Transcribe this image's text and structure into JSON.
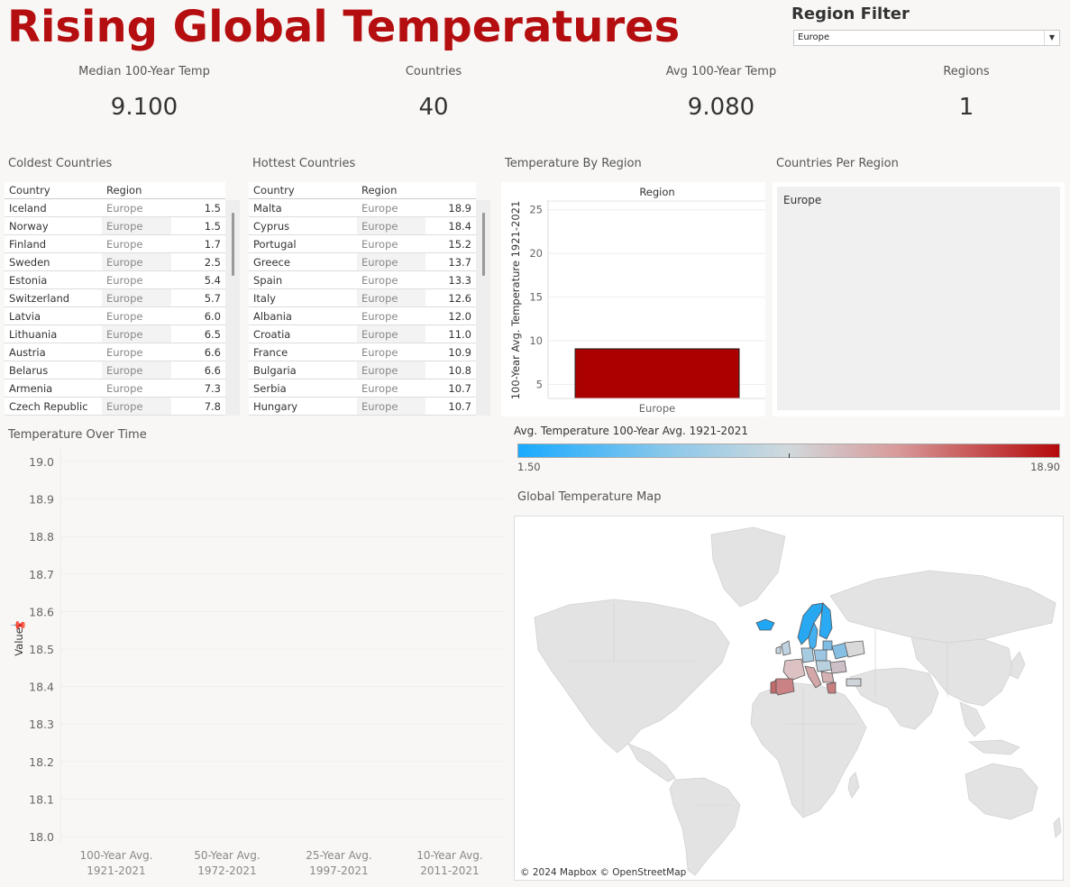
{
  "header": {
    "title": "Rising Global Temperatures"
  },
  "filter": {
    "label": "Region Filter",
    "selected": "Europe"
  },
  "kpis": [
    {
      "label": "Median 100-Year Temp",
      "value": "9.100"
    },
    {
      "label": "Countries",
      "value": "40"
    },
    {
      "label": "Avg 100-Year Temp",
      "value": "9.080"
    },
    {
      "label": "Regions",
      "value": "1"
    }
  ],
  "coldest": {
    "title": "Coldest Countries",
    "columns": [
      "Country",
      "Region",
      ""
    ],
    "rows": [
      [
        "Iceland",
        "Europe",
        "1.5"
      ],
      [
        "Norway",
        "Europe",
        "1.5"
      ],
      [
        "Finland",
        "Europe",
        "1.7"
      ],
      [
        "Sweden",
        "Europe",
        "2.5"
      ],
      [
        "Estonia",
        "Europe",
        "5.4"
      ],
      [
        "Switzerland",
        "Europe",
        "5.7"
      ],
      [
        "Latvia",
        "Europe",
        "6.0"
      ],
      [
        "Lithuania",
        "Europe",
        "6.5"
      ],
      [
        "Austria",
        "Europe",
        "6.6"
      ],
      [
        "Belarus",
        "Europe",
        "6.6"
      ],
      [
        "Armenia",
        "Europe",
        "7.3"
      ],
      [
        "Czech Republic",
        "Europe",
        "7.8"
      ]
    ]
  },
  "hottest": {
    "title": "Hottest Countries",
    "columns": [
      "Country",
      "Region",
      ""
    ],
    "rows": [
      [
        "Malta",
        "Europe",
        "18.9"
      ],
      [
        "Cyprus",
        "Europe",
        "18.4"
      ],
      [
        "Portugal",
        "Europe",
        "15.2"
      ],
      [
        "Greece",
        "Europe",
        "13.7"
      ],
      [
        "Spain",
        "Europe",
        "13.3"
      ],
      [
        "Italy",
        "Europe",
        "12.6"
      ],
      [
        "Albania",
        "Europe",
        "12.0"
      ],
      [
        "Croatia",
        "Europe",
        "11.0"
      ],
      [
        "France",
        "Europe",
        "10.9"
      ],
      [
        "Bulgaria",
        "Europe",
        "10.8"
      ],
      [
        "Serbia",
        "Europe",
        "10.7"
      ],
      [
        "Hungary",
        "Europe",
        "10.7"
      ]
    ]
  },
  "region_chart": {
    "title": "Temperature By Region",
    "header": "Region",
    "ylabel": "100-Year Avg. Temperature 1921-2021",
    "category": "Europe",
    "value": 9.08,
    "ylim": [
      3.4,
      26
    ],
    "ticks": [
      "5",
      "10",
      "15",
      "20",
      "25"
    ],
    "bar_color": "#aa0000"
  },
  "countries_per_region": {
    "title": "Countries Per Region",
    "item": "Europe"
  },
  "time_chart": {
    "title": "Temperature Over Time",
    "ylabel": "Value",
    "ticks": [
      "19.0",
      "18.9",
      "18.8",
      "18.7",
      "18.6",
      "18.5",
      "18.4",
      "18.3",
      "18.2",
      "18.1",
      "18.0"
    ],
    "categories": [
      [
        "100-Year Avg.",
        "1921-2021"
      ],
      [
        "50-Year Avg.",
        "1972-2021"
      ],
      [
        "25-Year Avg.",
        "1997-2021"
      ],
      [
        "10-Year Avg.",
        "2011-2021"
      ]
    ]
  },
  "legend": {
    "title": "Avg. Temperature 100-Year Avg. 1921-2021",
    "min": "1.50",
    "max": "18.90"
  },
  "map": {
    "title": "Global Temperature Map",
    "attribution": "© 2024 Mapbox © OpenStreetMap"
  },
  "chart_data": [
    {
      "type": "bar",
      "title": "Temperature By Region",
      "categories": [
        "Europe"
      ],
      "values": [
        9.08
      ],
      "xlabel": "Region",
      "ylabel": "100-Year Avg. Temperature 1921-2021",
      "ylim": [
        3.4,
        26
      ]
    },
    {
      "type": "line",
      "title": "Temperature Over Time",
      "categories": [
        "100-Year Avg. 1921-2021",
        "50-Year Avg. 1972-2021",
        "25-Year Avg. 1997-2021",
        "10-Year Avg. 2011-2021"
      ],
      "series": [],
      "ylabel": "Value",
      "ylim": [
        18.0,
        19.0
      ]
    }
  ]
}
